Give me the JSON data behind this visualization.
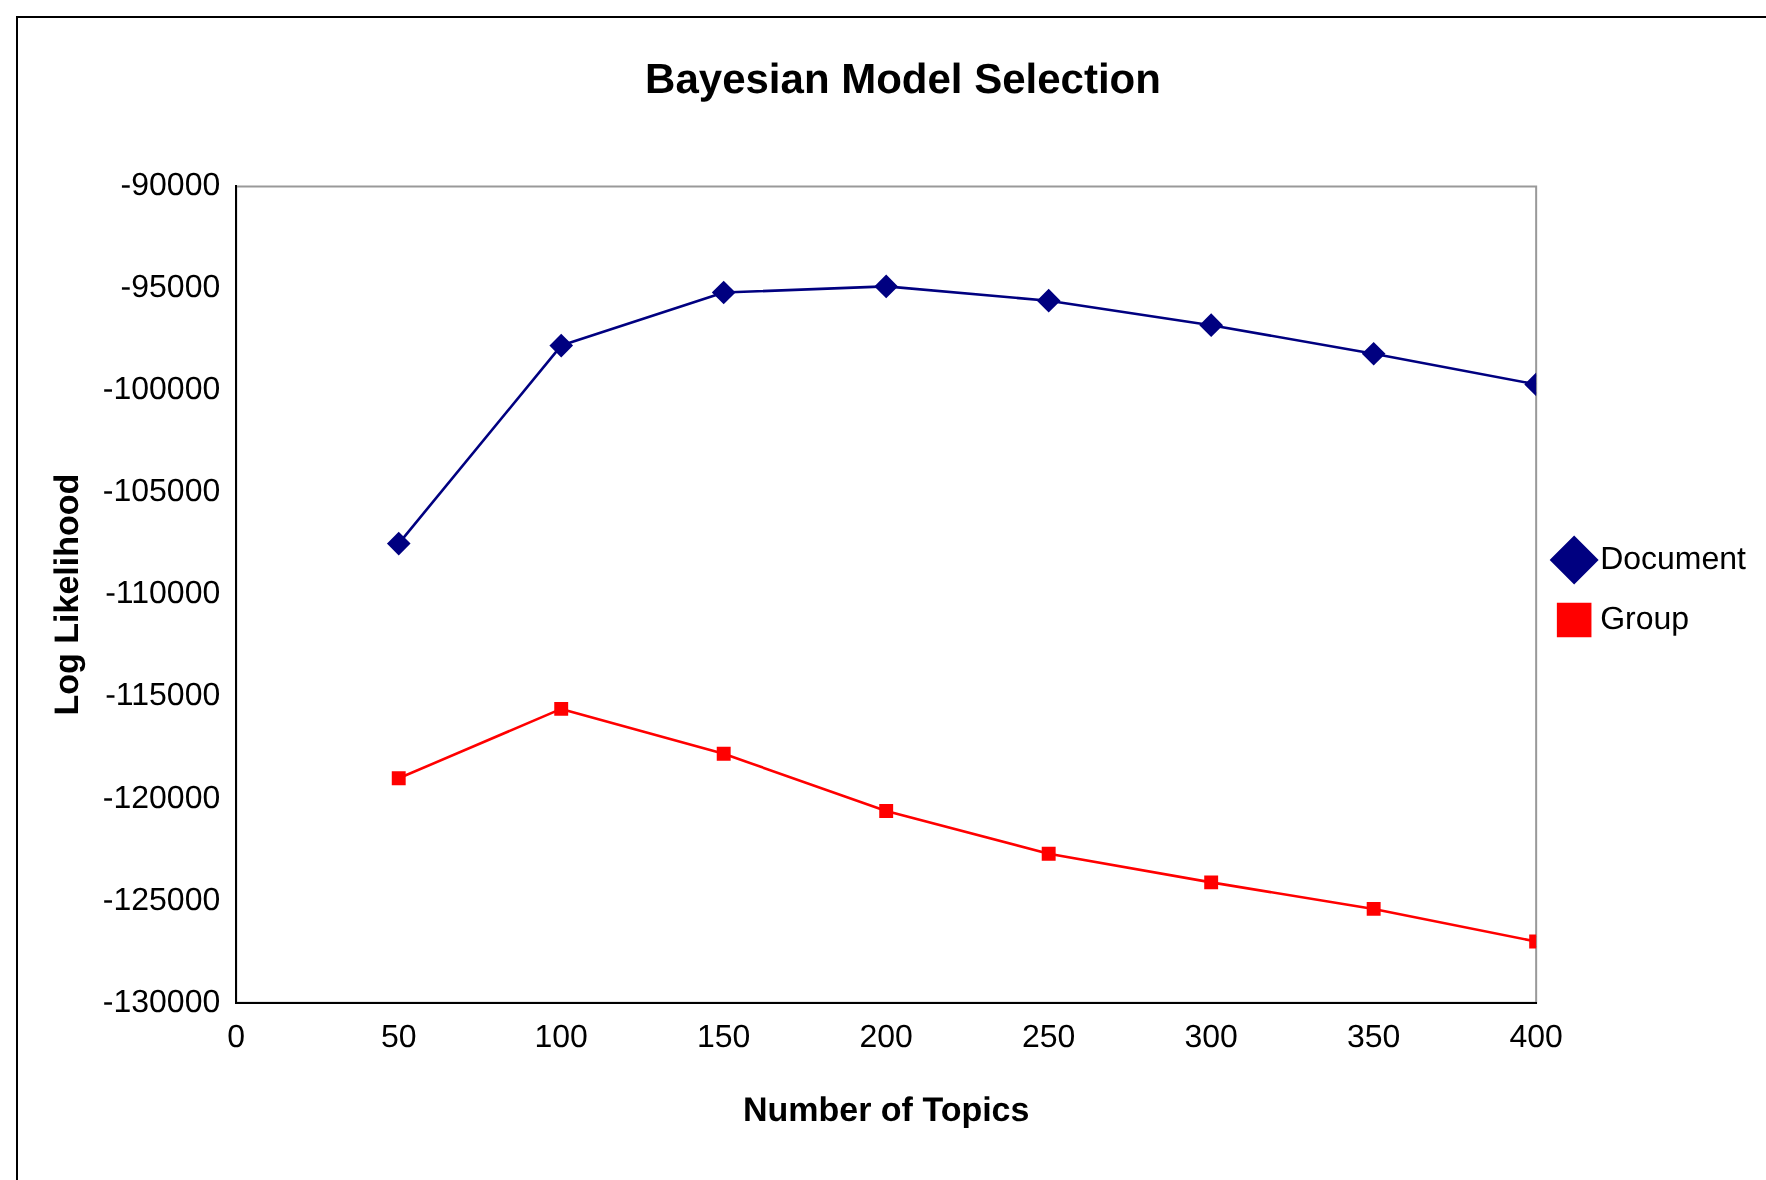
{
  "chart_data": {
    "type": "line",
    "title": "Bayesian Model Selection",
    "xlabel": "Number of Topics",
    "ylabel": "Log Likelihood",
    "x": [
      50,
      100,
      150,
      200,
      250,
      300,
      350,
      400
    ],
    "xlim": [
      0,
      400
    ],
    "xticks": [
      0,
      50,
      100,
      150,
      200,
      250,
      300,
      350,
      400
    ],
    "ylim": [
      -130000,
      -90000
    ],
    "yticks": [
      -130000,
      -125000,
      -120000,
      -115000,
      -110000,
      -105000,
      -100000,
      -95000,
      -90000
    ],
    "grid": false,
    "legend": "right",
    "line_style": "solid",
    "series": [
      {
        "name": "Document",
        "color": "#000080",
        "marker": "diamond",
        "values": [
          -107500,
          -97800,
          -95200,
          -94900,
          -95600,
          -96800,
          -98200,
          -99700
        ]
      },
      {
        "name": "Group",
        "color": "#ff0000",
        "marker": "square",
        "values": [
          -119000,
          -115600,
          -117800,
          -120600,
          -122700,
          -124100,
          -125400,
          -127000
        ]
      }
    ]
  }
}
